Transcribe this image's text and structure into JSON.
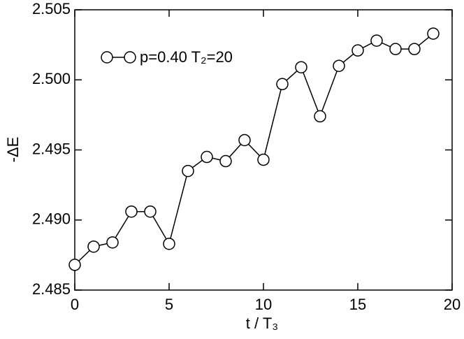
{
  "chart_data": {
    "type": "line",
    "x_label": "t / T₃",
    "y_label": "-ΔE",
    "x": [
      0,
      1,
      2,
      3,
      4,
      5,
      6,
      7,
      8,
      9,
      10,
      11,
      12,
      13,
      14,
      15,
      16,
      17,
      18,
      19
    ],
    "series": [
      {
        "name": "p=0.40 T₂=20",
        "color": "#000000",
        "values": [
          2.4868,
          2.4881,
          2.4884,
          2.4906,
          2.4906,
          2.4883,
          2.4935,
          2.4945,
          2.4942,
          2.4957,
          2.4943,
          2.4997,
          2.5009,
          2.4974,
          2.501,
          2.5021,
          2.5028,
          2.5022,
          2.5022,
          2.5033
        ]
      }
    ],
    "xlim": [
      0,
      20
    ],
    "xticks": [
      0,
      5,
      10,
      15,
      20
    ],
    "ylim": [
      2.485,
      2.505
    ],
    "yticks": [
      2.485,
      {
        "value": 2.49,
        "label": "2.490"
      },
      2.495,
      {
        "value": 2.5,
        "label": "2.500"
      },
      2.505
    ],
    "legend": "top-left",
    "grid": false
  }
}
